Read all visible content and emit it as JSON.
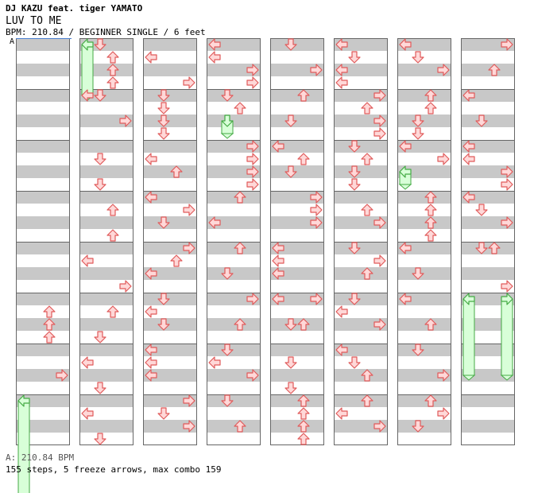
{
  "header": {
    "artist": "DJ KAZU feat. tiger YAMATO",
    "title": "LUV TO ME",
    "bpm_line": "BPM: 210.84 / BEGINNER SINGLE / 6 feet",
    "mark": "A"
  },
  "footer": {
    "legend": "A: 210.84 BPM",
    "summary": "155 steps, 5 freeze arrows, max combo 159"
  },
  "colors": {
    "stripe": "#c8c8c8",
    "border": "#666666",
    "arrow_fill": "#ffd8d8",
    "arrow_stroke": "#e05a5a",
    "freeze_fill": "#d8ffd8",
    "freeze_stroke": "#44aa44",
    "marker": "#4a7fd0"
  },
  "chart": {
    "measures_per_column": 8,
    "freezes": [
      {
        "col": 0,
        "m": 7,
        "b": 0,
        "dir": "left",
        "len": 8
      },
      {
        "col": 1,
        "m": 0,
        "b": 0,
        "dir": "left",
        "len": 4
      },
      {
        "col": 3,
        "m": 1,
        "b": 2,
        "dir": "down",
        "len": 1
      },
      {
        "col": 6,
        "m": 2,
        "b": 2,
        "dir": "left",
        "len": 1
      },
      {
        "col": 7,
        "m": 5,
        "b": 0,
        "dir": "left",
        "len": 6
      },
      {
        "col": 7,
        "m": 5,
        "b": 0,
        "dir": "right",
        "len": 6
      }
    ],
    "arrows": [
      {
        "col": 0,
        "m": 5,
        "b": 1,
        "dir": "up"
      },
      {
        "col": 0,
        "m": 5,
        "b": 2,
        "dir": "up"
      },
      {
        "col": 0,
        "m": 5,
        "b": 3,
        "dir": "up"
      },
      {
        "col": 0,
        "m": 6,
        "b": 2,
        "dir": "right"
      },
      {
        "col": 1,
        "m": 0,
        "b": 0,
        "dir": "down"
      },
      {
        "col": 1,
        "m": 0,
        "b": 1,
        "dir": "up"
      },
      {
        "col": 1,
        "m": 0,
        "b": 2,
        "dir": "up"
      },
      {
        "col": 1,
        "m": 0,
        "b": 3,
        "dir": "up"
      },
      {
        "col": 1,
        "m": 1,
        "b": 0,
        "dir": "left"
      },
      {
        "col": 1,
        "m": 1,
        "b": 0,
        "dir": "down"
      },
      {
        "col": 1,
        "m": 1,
        "b": 2,
        "dir": "right"
      },
      {
        "col": 1,
        "m": 2,
        "b": 1,
        "dir": "down"
      },
      {
        "col": 1,
        "m": 2,
        "b": 3,
        "dir": "down"
      },
      {
        "col": 1,
        "m": 3,
        "b": 1,
        "dir": "up"
      },
      {
        "col": 1,
        "m": 3,
        "b": 3,
        "dir": "up"
      },
      {
        "col": 1,
        "m": 4,
        "b": 1,
        "dir": "left"
      },
      {
        "col": 1,
        "m": 4,
        "b": 3,
        "dir": "right"
      },
      {
        "col": 1,
        "m": 5,
        "b": 1,
        "dir": "up"
      },
      {
        "col": 1,
        "m": 5,
        "b": 3,
        "dir": "down"
      },
      {
        "col": 1,
        "m": 6,
        "b": 1,
        "dir": "left"
      },
      {
        "col": 1,
        "m": 6,
        "b": 3,
        "dir": "down"
      },
      {
        "col": 1,
        "m": 7,
        "b": 1,
        "dir": "left"
      },
      {
        "col": 1,
        "m": 7,
        "b": 3,
        "dir": "down"
      },
      {
        "col": 2,
        "m": 0,
        "b": 1,
        "dir": "left"
      },
      {
        "col": 2,
        "m": 0,
        "b": 3,
        "dir": "right"
      },
      {
        "col": 2,
        "m": 1,
        "b": 0,
        "dir": "down"
      },
      {
        "col": 2,
        "m": 1,
        "b": 1,
        "dir": "down"
      },
      {
        "col": 2,
        "m": 1,
        "b": 2,
        "dir": "down"
      },
      {
        "col": 2,
        "m": 1,
        "b": 3,
        "dir": "down"
      },
      {
        "col": 2,
        "m": 2,
        "b": 1,
        "dir": "left"
      },
      {
        "col": 2,
        "m": 2,
        "b": 2,
        "dir": "up"
      },
      {
        "col": 2,
        "m": 3,
        "b": 0,
        "dir": "left"
      },
      {
        "col": 2,
        "m": 3,
        "b": 1,
        "dir": "right"
      },
      {
        "col": 2,
        "m": 3,
        "b": 2,
        "dir": "down"
      },
      {
        "col": 2,
        "m": 4,
        "b": 0,
        "dir": "right"
      },
      {
        "col": 2,
        "m": 4,
        "b": 1,
        "dir": "up"
      },
      {
        "col": 2,
        "m": 4,
        "b": 2,
        "dir": "left"
      },
      {
        "col": 2,
        "m": 5,
        "b": 0,
        "dir": "down"
      },
      {
        "col": 2,
        "m": 5,
        "b": 1,
        "dir": "left"
      },
      {
        "col": 2,
        "m": 5,
        "b": 2,
        "dir": "down"
      },
      {
        "col": 2,
        "m": 6,
        "b": 0,
        "dir": "left"
      },
      {
        "col": 2,
        "m": 6,
        "b": 1,
        "dir": "left"
      },
      {
        "col": 2,
        "m": 6,
        "b": 2,
        "dir": "left"
      },
      {
        "col": 2,
        "m": 7,
        "b": 0,
        "dir": "right"
      },
      {
        "col": 2,
        "m": 7,
        "b": 1,
        "dir": "down"
      },
      {
        "col": 2,
        "m": 7,
        "b": 2,
        "dir": "right"
      },
      {
        "col": 3,
        "m": 0,
        "b": 0,
        "dir": "left"
      },
      {
        "col": 3,
        "m": 0,
        "b": 1,
        "dir": "left"
      },
      {
        "col": 3,
        "m": 0,
        "b": 2,
        "dir": "right"
      },
      {
        "col": 3,
        "m": 0,
        "b": 3,
        "dir": "right"
      },
      {
        "col": 3,
        "m": 1,
        "b": 0,
        "dir": "down"
      },
      {
        "col": 3,
        "m": 1,
        "b": 1,
        "dir": "up"
      },
      {
        "col": 3,
        "m": 2,
        "b": 0,
        "dir": "right"
      },
      {
        "col": 3,
        "m": 2,
        "b": 1,
        "dir": "right"
      },
      {
        "col": 3,
        "m": 2,
        "b": 2,
        "dir": "right"
      },
      {
        "col": 3,
        "m": 2,
        "b": 3,
        "dir": "right"
      },
      {
        "col": 3,
        "m": 3,
        "b": 0,
        "dir": "up"
      },
      {
        "col": 3,
        "m": 3,
        "b": 2,
        "dir": "left"
      },
      {
        "col": 3,
        "m": 4,
        "b": 0,
        "dir": "up"
      },
      {
        "col": 3,
        "m": 4,
        "b": 2,
        "dir": "down"
      },
      {
        "col": 3,
        "m": 5,
        "b": 0,
        "dir": "right"
      },
      {
        "col": 3,
        "m": 5,
        "b": 2,
        "dir": "up"
      },
      {
        "col": 3,
        "m": 6,
        "b": 0,
        "dir": "down"
      },
      {
        "col": 3,
        "m": 6,
        "b": 1,
        "dir": "left"
      },
      {
        "col": 3,
        "m": 6,
        "b": 2,
        "dir": "right"
      },
      {
        "col": 3,
        "m": 7,
        "b": 0,
        "dir": "down"
      },
      {
        "col": 3,
        "m": 7,
        "b": 2,
        "dir": "up"
      },
      {
        "col": 4,
        "m": 0,
        "b": 0,
        "dir": "down"
      },
      {
        "col": 4,
        "m": 0,
        "b": 2,
        "dir": "right"
      },
      {
        "col": 4,
        "m": 1,
        "b": 0,
        "dir": "up"
      },
      {
        "col": 4,
        "m": 1,
        "b": 2,
        "dir": "down"
      },
      {
        "col": 4,
        "m": 2,
        "b": 0,
        "dir": "left"
      },
      {
        "col": 4,
        "m": 2,
        "b": 1,
        "dir": "up"
      },
      {
        "col": 4,
        "m": 2,
        "b": 2,
        "dir": "down"
      },
      {
        "col": 4,
        "m": 3,
        "b": 0,
        "dir": "right"
      },
      {
        "col": 4,
        "m": 3,
        "b": 1,
        "dir": "right"
      },
      {
        "col": 4,
        "m": 3,
        "b": 2,
        "dir": "right"
      },
      {
        "col": 4,
        "m": 4,
        "b": 0,
        "dir": "left"
      },
      {
        "col": 4,
        "m": 4,
        "b": 1,
        "dir": "left"
      },
      {
        "col": 4,
        "m": 4,
        "b": 2,
        "dir": "left"
      },
      {
        "col": 4,
        "m": 5,
        "b": 0,
        "dir": "left"
      },
      {
        "col": 4,
        "m": 5,
        "b": 0,
        "dir": "right"
      },
      {
        "col": 4,
        "m": 5,
        "b": 2,
        "dir": "down"
      },
      {
        "col": 4,
        "m": 5,
        "b": 2,
        "dir": "up"
      },
      {
        "col": 4,
        "m": 6,
        "b": 1,
        "dir": "down"
      },
      {
        "col": 4,
        "m": 6,
        "b": 3,
        "dir": "down"
      },
      {
        "col": 4,
        "m": 7,
        "b": 0,
        "dir": "up"
      },
      {
        "col": 4,
        "m": 7,
        "b": 1,
        "dir": "up"
      },
      {
        "col": 4,
        "m": 7,
        "b": 2,
        "dir": "up"
      },
      {
        "col": 4,
        "m": 7,
        "b": 3,
        "dir": "up"
      },
      {
        "col": 5,
        "m": 0,
        "b": 0,
        "dir": "left"
      },
      {
        "col": 5,
        "m": 0,
        "b": 1,
        "dir": "down"
      },
      {
        "col": 5,
        "m": 0,
        "b": 2,
        "dir": "left"
      },
      {
        "col": 5,
        "m": 0,
        "b": 3,
        "dir": "left"
      },
      {
        "col": 5,
        "m": 1,
        "b": 0,
        "dir": "right"
      },
      {
        "col": 5,
        "m": 1,
        "b": 1,
        "dir": "up"
      },
      {
        "col": 5,
        "m": 1,
        "b": 2,
        "dir": "right"
      },
      {
        "col": 5,
        "m": 1,
        "b": 3,
        "dir": "right"
      },
      {
        "col": 5,
        "m": 2,
        "b": 0,
        "dir": "down"
      },
      {
        "col": 5,
        "m": 2,
        "b": 1,
        "dir": "up"
      },
      {
        "col": 5,
        "m": 2,
        "b": 2,
        "dir": "down"
      },
      {
        "col": 5,
        "m": 2,
        "b": 3,
        "dir": "down"
      },
      {
        "col": 5,
        "m": 3,
        "b": 1,
        "dir": "up"
      },
      {
        "col": 5,
        "m": 3,
        "b": 2,
        "dir": "right"
      },
      {
        "col": 5,
        "m": 4,
        "b": 0,
        "dir": "down"
      },
      {
        "col": 5,
        "m": 4,
        "b": 1,
        "dir": "right"
      },
      {
        "col": 5,
        "m": 4,
        "b": 2,
        "dir": "up"
      },
      {
        "col": 5,
        "m": 5,
        "b": 0,
        "dir": "down"
      },
      {
        "col": 5,
        "m": 5,
        "b": 1,
        "dir": "left"
      },
      {
        "col": 5,
        "m": 5,
        "b": 2,
        "dir": "right"
      },
      {
        "col": 5,
        "m": 6,
        "b": 0,
        "dir": "left"
      },
      {
        "col": 5,
        "m": 6,
        "b": 1,
        "dir": "down"
      },
      {
        "col": 5,
        "m": 6,
        "b": 2,
        "dir": "up"
      },
      {
        "col": 5,
        "m": 7,
        "b": 0,
        "dir": "up"
      },
      {
        "col": 5,
        "m": 7,
        "b": 1,
        "dir": "left"
      },
      {
        "col": 5,
        "m": 7,
        "b": 2,
        "dir": "right"
      },
      {
        "col": 6,
        "m": 0,
        "b": 0,
        "dir": "left"
      },
      {
        "col": 6,
        "m": 0,
        "b": 1,
        "dir": "down"
      },
      {
        "col": 6,
        "m": 0,
        "b": 2,
        "dir": "right"
      },
      {
        "col": 6,
        "m": 1,
        "b": 0,
        "dir": "up"
      },
      {
        "col": 6,
        "m": 1,
        "b": 1,
        "dir": "up"
      },
      {
        "col": 6,
        "m": 1,
        "b": 2,
        "dir": "down"
      },
      {
        "col": 6,
        "m": 1,
        "b": 3,
        "dir": "down"
      },
      {
        "col": 6,
        "m": 2,
        "b": 0,
        "dir": "left"
      },
      {
        "col": 6,
        "m": 2,
        "b": 1,
        "dir": "right"
      },
      {
        "col": 6,
        "m": 3,
        "b": 0,
        "dir": "up"
      },
      {
        "col": 6,
        "m": 3,
        "b": 1,
        "dir": "up"
      },
      {
        "col": 6,
        "m": 3,
        "b": 2,
        "dir": "up"
      },
      {
        "col": 6,
        "m": 3,
        "b": 3,
        "dir": "up"
      },
      {
        "col": 6,
        "m": 4,
        "b": 0,
        "dir": "left"
      },
      {
        "col": 6,
        "m": 4,
        "b": 2,
        "dir": "down"
      },
      {
        "col": 6,
        "m": 5,
        "b": 0,
        "dir": "left"
      },
      {
        "col": 6,
        "m": 5,
        "b": 2,
        "dir": "up"
      },
      {
        "col": 6,
        "m": 6,
        "b": 0,
        "dir": "down"
      },
      {
        "col": 6,
        "m": 6,
        "b": 2,
        "dir": "right"
      },
      {
        "col": 6,
        "m": 7,
        "b": 0,
        "dir": "up"
      },
      {
        "col": 6,
        "m": 7,
        "b": 1,
        "dir": "right"
      },
      {
        "col": 6,
        "m": 7,
        "b": 2,
        "dir": "down"
      },
      {
        "col": 7,
        "m": 0,
        "b": 0,
        "dir": "right"
      },
      {
        "col": 7,
        "m": 0,
        "b": 2,
        "dir": "up"
      },
      {
        "col": 7,
        "m": 1,
        "b": 0,
        "dir": "left"
      },
      {
        "col": 7,
        "m": 1,
        "b": 2,
        "dir": "down"
      },
      {
        "col": 7,
        "m": 2,
        "b": 0,
        "dir": "left"
      },
      {
        "col": 7,
        "m": 2,
        "b": 1,
        "dir": "left"
      },
      {
        "col": 7,
        "m": 2,
        "b": 2,
        "dir": "right"
      },
      {
        "col": 7,
        "m": 2,
        "b": 3,
        "dir": "right"
      },
      {
        "col": 7,
        "m": 3,
        "b": 0,
        "dir": "left"
      },
      {
        "col": 7,
        "m": 3,
        "b": 1,
        "dir": "down"
      },
      {
        "col": 7,
        "m": 3,
        "b": 2,
        "dir": "right"
      },
      {
        "col": 7,
        "m": 4,
        "b": 0,
        "dir": "down"
      },
      {
        "col": 7,
        "m": 4,
        "b": 0,
        "dir": "up"
      },
      {
        "col": 7,
        "m": 4,
        "b": 3,
        "dir": "right"
      }
    ]
  }
}
